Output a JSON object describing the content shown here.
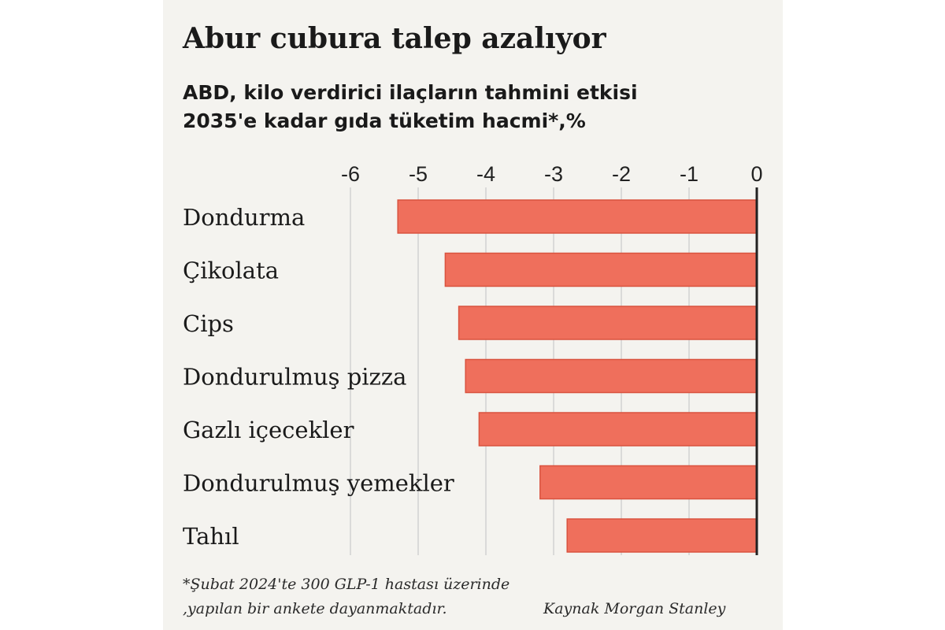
{
  "title": "Abur cubura talep azalıyor",
  "subtitle_line1": "ABD, kilo verdirici ilaçların tahmini etkisi",
  "subtitle_line2": "2035'e kadar gıda tüketim hacmi*,%",
  "footnote_line1": "*Şubat 2024'te 300 GLP-1 hastası üzerinde",
  "footnote_line2": ",yapılan bir ankete dayanmaktadır.",
  "source": "Kaynak Morgan Stanley",
  "colors": {
    "bar": "#ef6f5c",
    "bar_edge": "#d9533f",
    "grid": "#d2d2d2",
    "zero_line": "#222222",
    "panel": "#f4f3ef"
  },
  "chart_data": {
    "type": "bar",
    "orientation": "horizontal",
    "categories": [
      "Dondurma",
      "Çikolata",
      "Cips",
      "Dondurulmuş pizza",
      "Gazlı içecekler",
      "Dondurulmuş yemekler",
      "Tahıl"
    ],
    "values": [
      -5.3,
      -4.6,
      -4.4,
      -4.3,
      -4.1,
      -3.2,
      -2.8
    ],
    "xlim": [
      -6,
      0
    ],
    "ticks": [
      "-6",
      "-5",
      "-4",
      "-3",
      "-2",
      "-1",
      "0"
    ],
    "tick_values": [
      -6,
      -5,
      -4,
      -3,
      -2,
      -1,
      0
    ],
    "grid": true,
    "tick_position": "top"
  }
}
